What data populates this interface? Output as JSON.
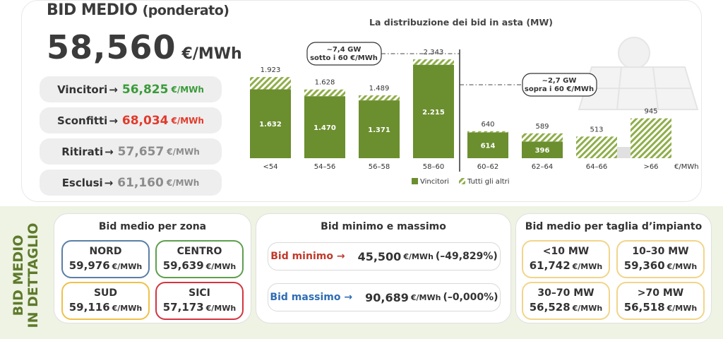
{
  "header": {
    "title": "BID MEDIO",
    "title_sub": "(ponderato)",
    "avg_value": "58,560",
    "avg_unit": "€/MWh"
  },
  "summary": [
    {
      "label": "Vincitori",
      "arrow": "→",
      "value": "56,825",
      "unit": "€/MWh",
      "color": "#3a9b3a"
    },
    {
      "label": "Sconfitti",
      "arrow": "→",
      "value": "68,034",
      "unit": "€/MWh",
      "color": "#e23a2b"
    },
    {
      "label": "Ritirati",
      "arrow": "→",
      "value": "57,657",
      "unit": "€/MWh",
      "color": "#8c8c8c"
    },
    {
      "label": "Esclusi",
      "arrow": "→",
      "value": "61,160",
      "unit": "€/MWh",
      "color": "#8c8c8c"
    }
  ],
  "colors": {
    "winners": "#6b8e2f",
    "others_hatch": "#8fae4a",
    "accent_green": "#5d7a2b",
    "blue": "#2e6db4",
    "red": "#c0392b"
  },
  "chart_data": {
    "type": "bar",
    "title": "La distribuzione dei bid in asta (MW)",
    "categories": [
      "<54",
      "54–56",
      "56–58",
      "58–60",
      "60–62",
      "62–64",
      "64–66",
      ">66"
    ],
    "x_unit": "€/MWh",
    "series": [
      {
        "name": "Vincitori",
        "values": [
          1632,
          1470,
          1371,
          2215,
          614,
          396,
          null,
          null
        ]
      },
      {
        "name": "Tutti gli altri",
        "values": [
          291,
          158,
          118,
          128,
          26,
          193,
          513,
          945
        ]
      }
    ],
    "totals": [
      1923,
      1628,
      1489,
      2343,
      640,
      589,
      513,
      945
    ],
    "total_labels": [
      "1.923",
      "1.628",
      "1.489",
      "2.343",
      "640",
      "589",
      "513",
      "945"
    ],
    "winner_labels": [
      "1.632",
      "1.470",
      "1.371",
      "2.215",
      "614",
      "396",
      "",
      ""
    ],
    "annotations": [
      {
        "line1": "~7,4 GW",
        "line2": "sotto i 60 €/MWh"
      },
      {
        "line1": "~2,7 GW",
        "line2": "sopra i 60 €/MWh"
      }
    ],
    "legend": [
      {
        "name": "Vincitori",
        "style": "solid"
      },
      {
        "name": "Tutti gli altri",
        "style": "hatched"
      }
    ],
    "legend_position": "bottom",
    "grid": false,
    "ylim": [
      0,
      2500
    ]
  },
  "details": {
    "side_label_line1": "BID MEDIO",
    "side_label_line2": "IN DETTAGLIO",
    "zones_title": "Bid medio per zona",
    "zones": [
      {
        "name": "NORD",
        "value": "59,976",
        "unit": "€/MWh",
        "border": "#5b7fa6"
      },
      {
        "name": "CENTRO",
        "value": "59,639",
        "unit": "€/MWh",
        "border": "#5e9f4c"
      },
      {
        "name": "SUD",
        "value": "59,116",
        "unit": "€/MWh",
        "border": "#efc14a"
      },
      {
        "name": "SICI",
        "value": "57,173",
        "unit": "€/MWh",
        "border": "#d3353f"
      }
    ],
    "minmax_title": "Bid minimo e massimo",
    "min": {
      "label": "Bid minimo",
      "arrow": "→",
      "value": "45,500",
      "unit": "€/MWh",
      "pct": "(–49,829%)"
    },
    "max": {
      "label": "Bid massimo",
      "arrow": "→",
      "value": "90,689",
      "unit": "€/MWh",
      "pct": "(–0,000%)"
    },
    "sizes_title": "Bid medio per taglia d’impianto",
    "sizes": [
      {
        "name": "<10 MW",
        "value": "61,742",
        "unit": "€/MWh"
      },
      {
        "name": "10–30 MW",
        "value": "59,360",
        "unit": "€/MWh"
      },
      {
        "name": "30–70 MW",
        "value": "56,528",
        "unit": "€/MWh"
      },
      {
        "name": ">70 MW",
        "value": "56,518",
        "unit": "€/MWh"
      }
    ],
    "sizes_border": "#f1d58a"
  }
}
